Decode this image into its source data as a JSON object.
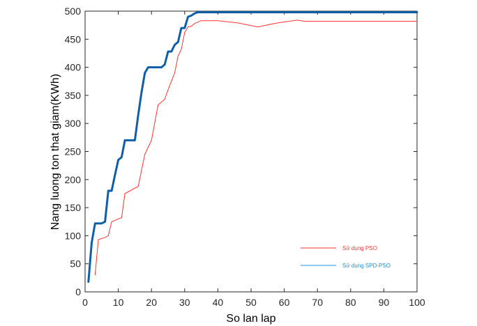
{
  "chart_data": {
    "type": "line",
    "xlabel": "So lan lap",
    "ylabel": "Nang luong ton that giam(KWh)",
    "xlim": [
      0,
      100
    ],
    "ylim": [
      0,
      500
    ],
    "xticks": [
      0,
      10,
      20,
      30,
      40,
      50,
      60,
      70,
      80,
      90,
      100
    ],
    "yticks": [
      0,
      50,
      100,
      150,
      200,
      250,
      300,
      350,
      400,
      450,
      500
    ],
    "grid": false,
    "legend_position": "bottom-right",
    "series": [
      {
        "name": "Sử dụng PSO",
        "color": "#ff3333",
        "line_width": 1,
        "x": [
          3,
          4,
          6,
          7,
          8,
          10,
          11,
          12,
          16,
          18,
          20,
          22,
          24,
          25,
          27,
          28,
          29,
          30,
          31,
          32,
          33,
          35,
          40,
          46,
          52,
          58,
          64,
          66,
          70,
          80,
          90,
          100
        ],
        "y": [
          30,
          93,
          97,
          100,
          125,
          130,
          132,
          175,
          188,
          245,
          270,
          333,
          343,
          360,
          390,
          420,
          432,
          462,
          472,
          473,
          478,
          483,
          483,
          479,
          472,
          479,
          484,
          482,
          482,
          482,
          482,
          482
        ]
      },
      {
        "name": "Sử dụng SPD-PSO",
        "color": "#0f5fa8",
        "line_width": 3,
        "x": [
          1,
          2,
          3,
          4,
          5,
          6,
          7,
          8,
          9,
          10,
          11,
          12,
          13,
          14,
          15,
          16,
          17,
          18,
          19,
          20,
          21,
          22,
          23,
          24,
          25,
          26,
          27,
          28,
          29,
          30,
          31,
          32,
          33,
          34,
          35,
          40,
          50,
          60,
          70,
          80,
          90,
          100
        ],
        "y": [
          18,
          88,
          122,
          122,
          122,
          125,
          180,
          180,
          208,
          235,
          240,
          270,
          270,
          270,
          270,
          315,
          355,
          390,
          400,
          400,
          400,
          400,
          400,
          405,
          428,
          428,
          440,
          445,
          470,
          470,
          490,
          492,
          496,
          498,
          498,
          498,
          498,
          498,
          498,
          498,
          498,
          498
        ]
      }
    ]
  }
}
